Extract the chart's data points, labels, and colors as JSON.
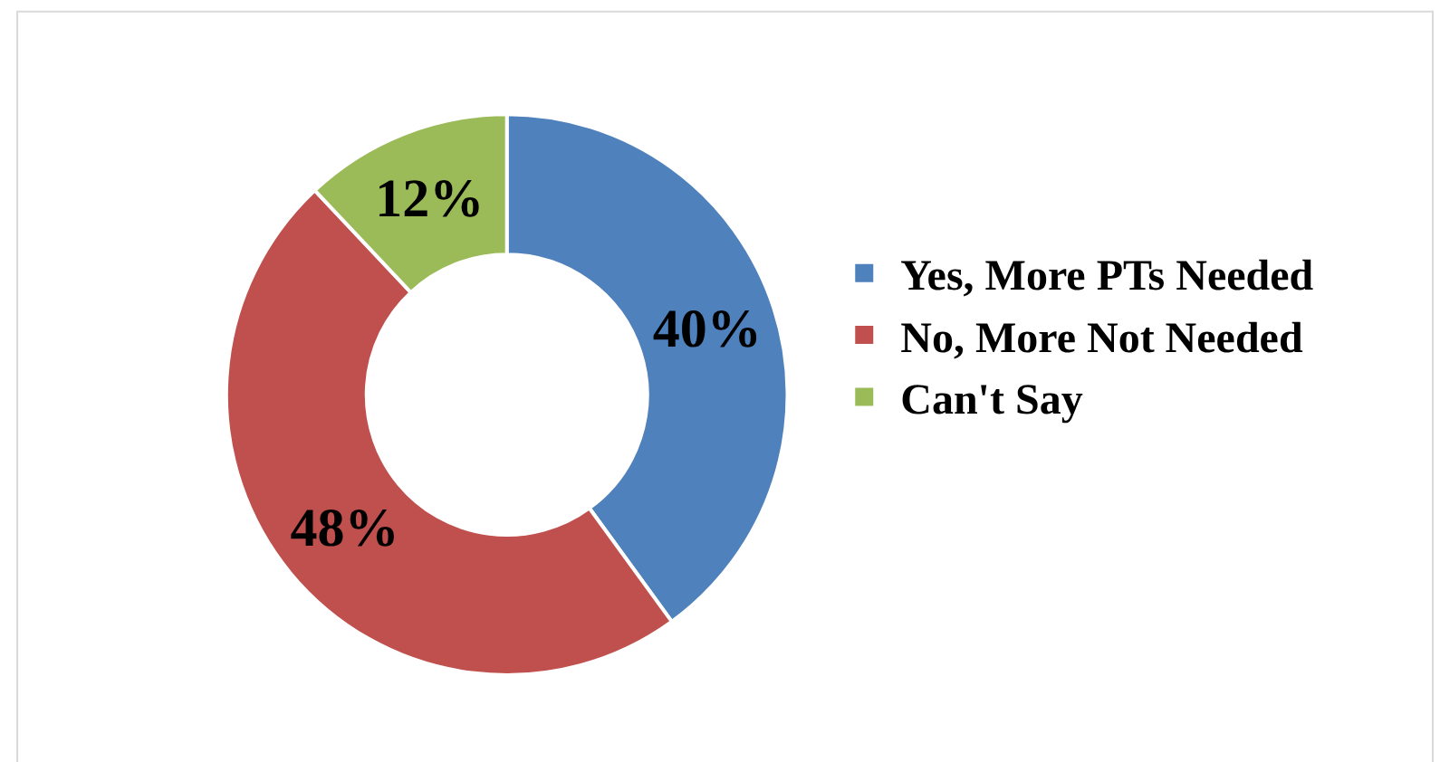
{
  "chart_data": {
    "type": "donut",
    "categories": [
      "Yes, More PTs Needed",
      "No, More Not Needed",
      "Can't Say"
    ],
    "values": [
      40,
      48,
      12
    ],
    "value_labels": [
      "40%",
      "48%",
      "12%"
    ],
    "colors": [
      "#4f81bd",
      "#c0504d",
      "#9bbb59"
    ],
    "legend": "right"
  }
}
